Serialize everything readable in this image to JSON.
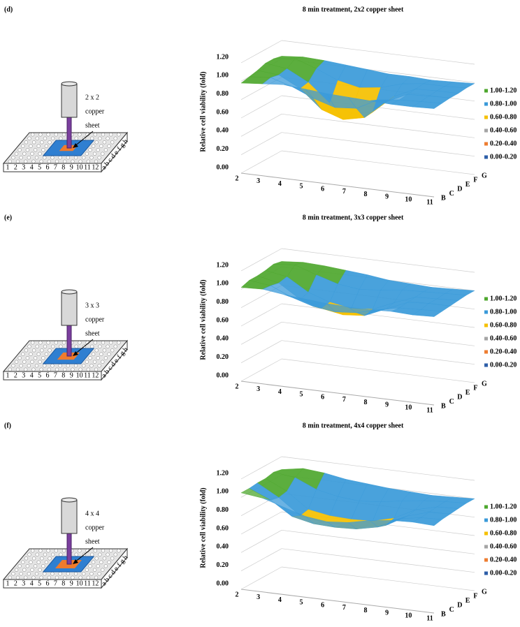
{
  "figure": {
    "panels": [
      {
        "label": "(d)",
        "schematic_text": [
          "2 x 2",
          "copper",
          "sheet"
        ]
      },
      {
        "label": "(e)",
        "schematic_text": [
          "3 x 3",
          "copper",
          "sheet"
        ]
      },
      {
        "label": "(f)",
        "schematic_text": [
          "4 x 4",
          "copper",
          "sheet"
        ]
      }
    ],
    "plate_columns": [
      "1",
      "2",
      "3",
      "4",
      "5",
      "6",
      "7",
      "8",
      "9",
      "10",
      "11",
      "12"
    ],
    "plate_rows": [
      "a",
      "b",
      "c",
      "d",
      "e",
      "f",
      "g",
      "h"
    ]
  },
  "chart_data": [
    {
      "type": "surface",
      "title": "8 min treatment, 2x2 copper sheet",
      "y_label": "Relative cell viability (fold)",
      "categories": [
        "2",
        "3",
        "4",
        "5",
        "6",
        "7",
        "8",
        "9",
        "10",
        "11"
      ],
      "z_categories": [
        "B",
        "C",
        "D",
        "E",
        "F",
        "G"
      ],
      "ylim": [
        0,
        1.2
      ],
      "yticks": [
        {
          "value": 0,
          "label": "0.00"
        },
        {
          "value": 0.2,
          "label": "0.20"
        },
        {
          "value": 0.4,
          "label": "0.40"
        },
        {
          "value": 0.6,
          "label": "0.60"
        },
        {
          "value": 0.8,
          "label": "0.80"
        },
        {
          "value": 1,
          "label": "1.00"
        },
        {
          "value": 1.2,
          "label": "1.20"
        }
      ],
      "bands": [
        {
          "name": "1.00-1.20",
          "color": "#4ea72e",
          "from": 1,
          "to": 1.2
        },
        {
          "name": "0.80-1.00",
          "color": "#3a9ad9",
          "from": 0.8,
          "to": 1
        },
        {
          "name": "0.60-0.80",
          "color": "#f5c000",
          "from": 0.6,
          "to": 0.8
        },
        {
          "name": "0.40-0.60",
          "color": "#a5a5a5",
          "from": 0.4,
          "to": 0.6
        },
        {
          "name": "0.20-0.40",
          "color": "#ed7d31",
          "from": 0.2,
          "to": 0.4
        },
        {
          "name": "0.00-0.20",
          "color": "#2e5fa8",
          "from": 0,
          "to": 0.2
        }
      ],
      "values": [
        [
          0.98,
          1.0,
          1.02,
          1.0,
          0.98,
          0.97,
          0.96,
          0.95,
          0.95,
          0.96
        ],
        [
          1.0,
          1.02,
          0.95,
          0.85,
          0.78,
          0.8,
          0.92,
          0.95,
          0.96,
          0.97
        ],
        [
          1.02,
          1.0,
          0.88,
          0.68,
          0.6,
          0.65,
          0.85,
          0.96,
          0.97,
          0.98
        ],
        [
          1.05,
          1.02,
          0.9,
          0.7,
          0.62,
          0.66,
          0.86,
          0.97,
          0.98,
          0.98
        ],
        [
          1.05,
          1.08,
          1.0,
          0.9,
          0.85,
          0.88,
          0.95,
          0.98,
          0.98,
          0.99
        ],
        [
          1.03,
          1.05,
          1.04,
          1.02,
          1.0,
          0.98,
          0.98,
          0.97,
          0.98,
          0.99
        ]
      ]
    },
    {
      "type": "surface",
      "title": "8 min treatment, 3x3 copper sheet",
      "y_label": "Relative cell viability (fold)",
      "categories": [
        "2",
        "3",
        "4",
        "5",
        "6",
        "7",
        "8",
        "9",
        "10",
        "11"
      ],
      "z_categories": [
        "B",
        "C",
        "D",
        "E",
        "F",
        "G"
      ],
      "ylim": [
        0,
        1.2
      ],
      "yticks": [
        {
          "value": 0,
          "label": "0.00"
        },
        {
          "value": 0.2,
          "label": "0.20"
        },
        {
          "value": 0.4,
          "label": "0.40"
        },
        {
          "value": 0.6,
          "label": "0.60"
        },
        {
          "value": 0.8,
          "label": "0.80"
        },
        {
          "value": 1,
          "label": "1.00"
        },
        {
          "value": 1.2,
          "label": "1.20"
        }
      ],
      "bands": [
        {
          "name": "1.00-1.20",
          "color": "#4ea72e",
          "from": 1,
          "to": 1.2
        },
        {
          "name": "0.80-1.00",
          "color": "#3a9ad9",
          "from": 0.8,
          "to": 1
        },
        {
          "name": "0.60-0.80",
          "color": "#f5c000",
          "from": 0.6,
          "to": 0.8
        },
        {
          "name": "0.40-0.60",
          "color": "#a5a5a5",
          "from": 0.4,
          "to": 0.6
        },
        {
          "name": "0.20-0.40",
          "color": "#ed7d31",
          "from": 0.2,
          "to": 0.4
        },
        {
          "name": "0.00-0.20",
          "color": "#2e5fa8",
          "from": 0,
          "to": 0.2
        }
      ],
      "values": [
        [
          1.02,
          1.03,
          1.0,
          0.98,
          0.96,
          0.95,
          0.95,
          0.96,
          0.95,
          0.96
        ],
        [
          1.05,
          1.02,
          0.92,
          0.85,
          0.82,
          0.84,
          0.9,
          0.95,
          0.96,
          0.97
        ],
        [
          1.05,
          1.0,
          0.85,
          0.78,
          0.74,
          0.76,
          0.86,
          0.96,
          0.98,
          0.98
        ],
        [
          1.06,
          1.02,
          0.88,
          0.8,
          0.76,
          0.78,
          0.88,
          0.97,
          0.98,
          0.99
        ],
        [
          1.08,
          1.1,
          1.02,
          0.95,
          0.92,
          0.94,
          0.97,
          0.98,
          0.99,
          1.0
        ],
        [
          1.06,
          1.08,
          1.07,
          1.05,
          1.03,
          1.0,
          0.99,
          0.98,
          0.99,
          1.0
        ]
      ]
    },
    {
      "type": "surface",
      "title": "8 min treatment, 4x4 copper sheet",
      "y_label": "Relative cell viability (fold)",
      "categories": [
        "2",
        "3",
        "4",
        "5",
        "6",
        "7",
        "8",
        "9",
        "10",
        "11"
      ],
      "z_categories": [
        "B",
        "C",
        "D",
        "E",
        "F",
        "G"
      ],
      "ylim": [
        0,
        1.2
      ],
      "yticks": [
        {
          "value": 0,
          "label": "0.00"
        },
        {
          "value": 0.2,
          "label": "0.20"
        },
        {
          "value": 0.4,
          "label": "0.40"
        },
        {
          "value": 0.6,
          "label": "0.60"
        },
        {
          "value": 0.8,
          "label": "0.80"
        },
        {
          "value": 1,
          "label": "1.00"
        },
        {
          "value": 1.2,
          "label": "1.20"
        }
      ],
      "bands": [
        {
          "name": "1.00-1.20",
          "color": "#4ea72e",
          "from": 1,
          "to": 1.2
        },
        {
          "name": "0.80-1.00",
          "color": "#3a9ad9",
          "from": 0.8,
          "to": 1
        },
        {
          "name": "0.60-0.80",
          "color": "#f5c000",
          "from": 0.6,
          "to": 0.8
        },
        {
          "name": "0.40-0.60",
          "color": "#a5a5a5",
          "from": 0.4,
          "to": 0.6
        },
        {
          "name": "0.20-0.40",
          "color": "#ed7d31",
          "from": 0.2,
          "to": 0.4
        },
        {
          "name": "0.00-0.20",
          "color": "#2e5fa8",
          "from": 0,
          "to": 0.2
        }
      ],
      "values": [
        [
          1.05,
          1.02,
          0.95,
          0.88,
          0.85,
          0.87,
          0.92,
          0.95,
          0.96,
          0.95
        ],
        [
          1.05,
          0.95,
          0.8,
          0.75,
          0.74,
          0.75,
          0.8,
          0.92,
          0.96,
          0.97
        ],
        [
          1.06,
          0.93,
          0.76,
          0.72,
          0.72,
          0.73,
          0.77,
          0.9,
          0.97,
          0.98
        ],
        [
          1.06,
          0.95,
          0.78,
          0.74,
          0.73,
          0.74,
          0.8,
          0.92,
          0.98,
          0.99
        ],
        [
          1.08,
          1.05,
          0.95,
          0.9,
          0.88,
          0.9,
          0.94,
          0.97,
          0.99,
          1.0
        ],
        [
          1.06,
          1.1,
          1.08,
          1.04,
          1.02,
          1.0,
          0.99,
          0.98,
          0.99,
          1.0
        ]
      ]
    }
  ]
}
